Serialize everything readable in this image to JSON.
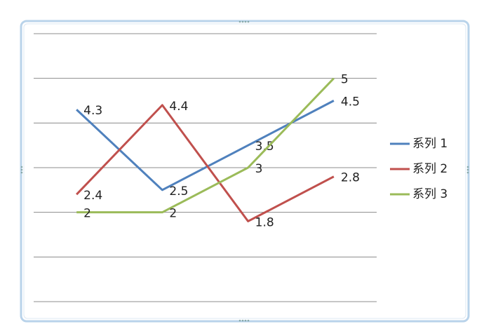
{
  "chart_data": {
    "type": "line",
    "categories": [
      null,
      null,
      null,
      null
    ],
    "series": [
      {
        "name": "系列 1",
        "color": "#4f81bd",
        "values": [
          4.3,
          2.5,
          3.5,
          4.5
        ]
      },
      {
        "name": "系列 2",
        "color": "#c0504d",
        "values": [
          2.4,
          4.4,
          1.8,
          2.8
        ]
      },
      {
        "name": "系列 3",
        "color": "#9bbb59",
        "values": [
          2,
          2,
          3,
          5
        ]
      }
    ],
    "ylim": [
      0,
      6
    ],
    "yticks": [
      0,
      1,
      2,
      3,
      4,
      5,
      6
    ],
    "grid": true,
    "legend": "right"
  }
}
